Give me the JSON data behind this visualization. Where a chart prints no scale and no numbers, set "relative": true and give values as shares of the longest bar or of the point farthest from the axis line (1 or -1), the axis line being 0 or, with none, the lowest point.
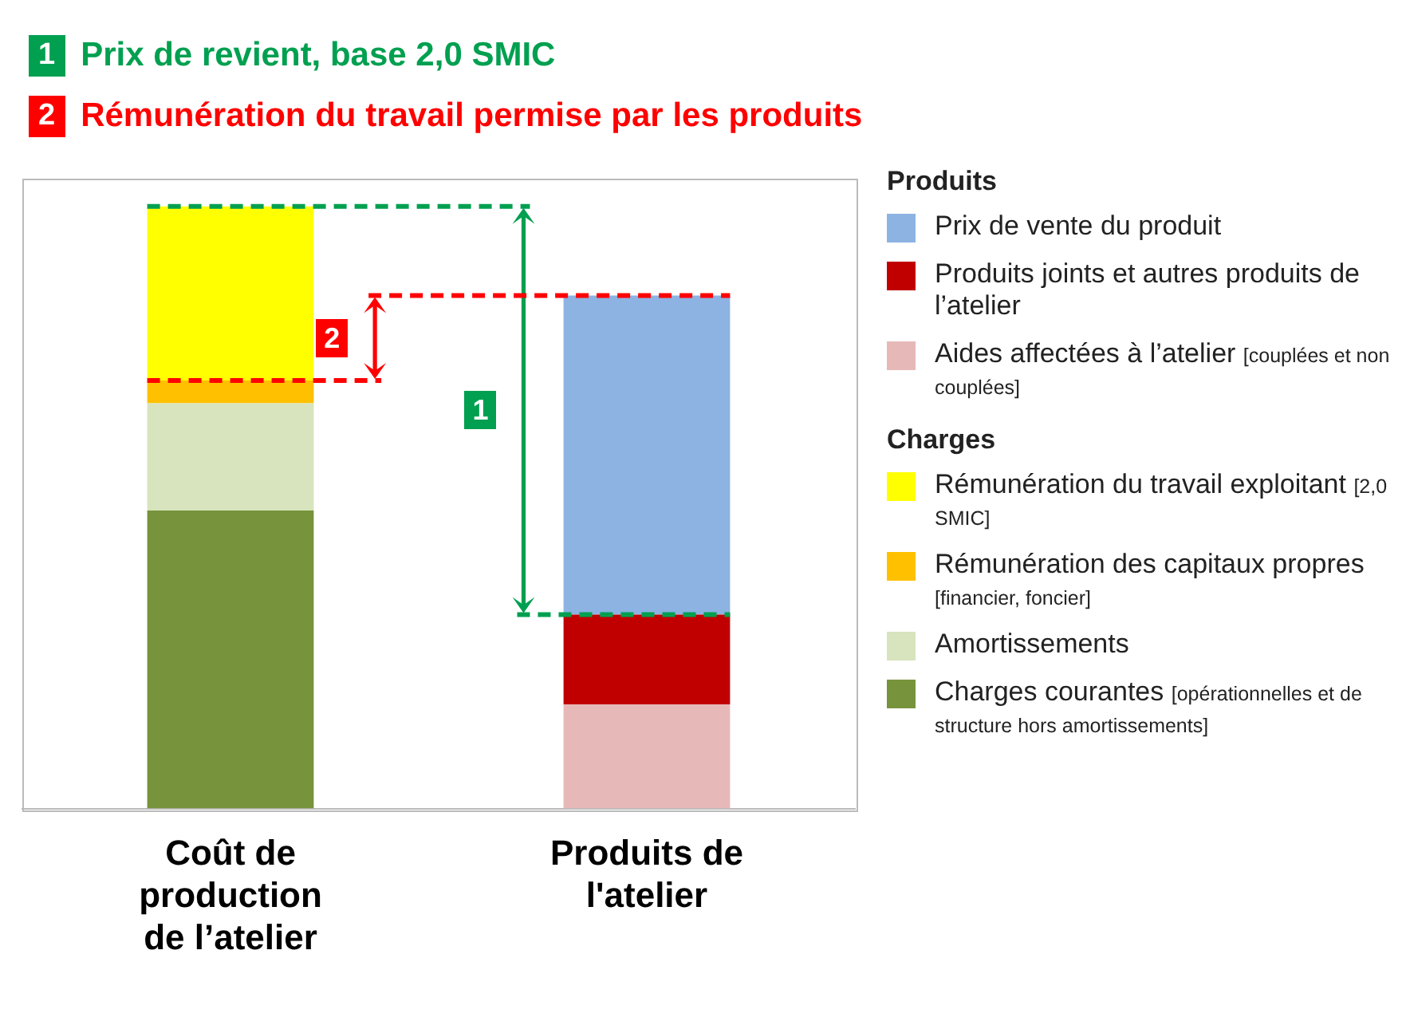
{
  "chart_data": {
    "type": "bar",
    "stacked": true,
    "relative": true,
    "legend": "right",
    "grid": false,
    "categories": [
      "Coût de production de l’atelier",
      "Produits de l'atelier"
    ],
    "series": [
      {
        "name": "Charges courantes [opérationnelles et de structure hors amortissements]",
        "color": "#77933c",
        "values": [
          0.495,
          null
        ]
      },
      {
        "name": "Amortissements",
        "color": "#d7e4bd",
        "values": [
          0.178,
          null
        ]
      },
      {
        "name": "Rémunération des capitaux propres [financier, foncier]",
        "color": "#ffc000",
        "values": [
          0.038,
          null
        ]
      },
      {
        "name": "Rémunération du travail exploitant [2,0 SMIC]",
        "color": "#ffff00",
        "values": [
          0.289,
          null
        ]
      },
      {
        "name": "Aides affectées à l’atelier [couplées et non couplées]",
        "color": "#e6b9b8",
        "values": [
          null,
          0.173
        ]
      },
      {
        "name": "Produits joints et autres produits de l’atelier",
        "color": "#c00000",
        "values": [
          null,
          0.149
        ]
      },
      {
        "name": "Prix de vente du produit",
        "color": "#8db3e2",
        "values": [
          null,
          0.53
        ]
      }
    ],
    "ref_lines": [
      {
        "axis": "y",
        "value": 1.0,
        "color": "#00a050",
        "line_style": "dashed"
      },
      {
        "axis": "y",
        "value": 0.322,
        "color": "#00a050",
        "line_style": "dashed"
      },
      {
        "axis": "y",
        "value": 0.852,
        "color": "#ff0000",
        "line_style": "dashed"
      },
      {
        "axis": "y",
        "value": 0.711,
        "color": "#ff0000",
        "line_style": "dashed"
      }
    ],
    "annotations": [
      "1",
      "Prix de revient, base 2,0 SMIC",
      "2",
      "Rémunération du travail permise par les produits",
      "Produits",
      "Charges"
    ]
  }
}
